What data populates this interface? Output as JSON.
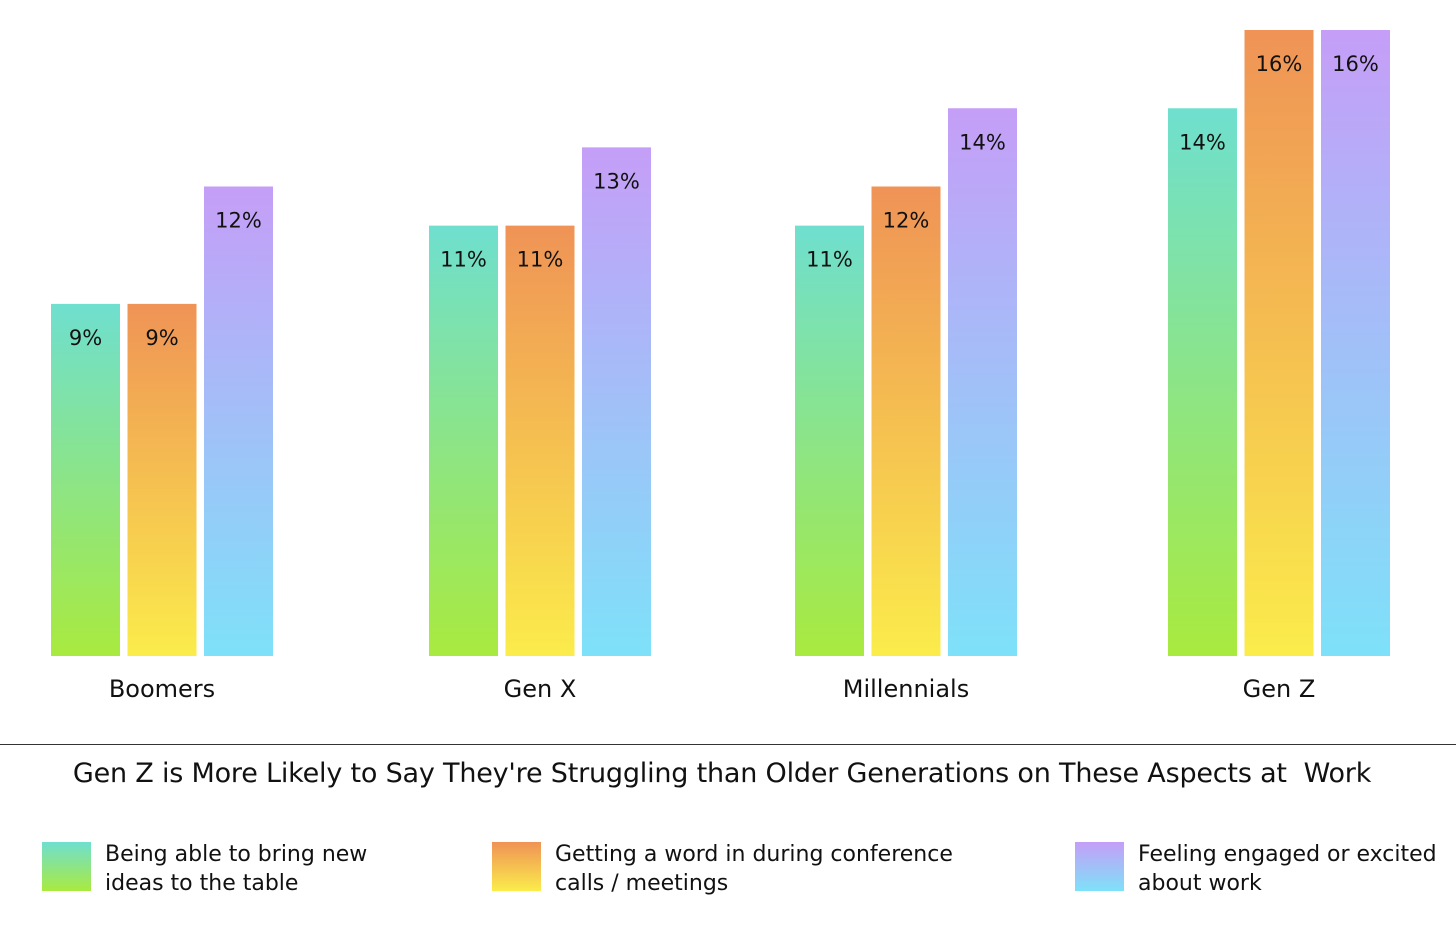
{
  "chart_data": {
    "type": "bar",
    "title": "Gen Z is More Likely to Say They're Struggling than Older Generations on These Aspects at  Work",
    "categories": [
      "Boomers",
      "Gen X",
      "Millennials",
      "Gen Z"
    ],
    "series": [
      {
        "name": "Being able to bring new ideas to the table",
        "values": [
          9,
          11,
          11,
          14
        ],
        "data_labels": [
          "9%",
          "11%",
          "11%",
          "14%"
        ],
        "gradient": [
          "#6fdfcf",
          "#a9ea3f"
        ]
      },
      {
        "name": "Getting a word in during conference calls / meetings",
        "values": [
          9,
          11,
          12,
          16
        ],
        "data_labels": [
          "9%",
          "11%",
          "12%",
          "16%"
        ],
        "gradient": [
          "#ef9356",
          "#fbec4b"
        ]
      },
      {
        "name": "Feeling engaged or excited about work",
        "values": [
          12,
          13,
          14,
          16
        ],
        "data_labels": [
          "12%",
          "13%",
          "14%",
          "16%"
        ],
        "gradient": [
          "#c59ef7",
          "#7ee1f9"
        ]
      }
    ],
    "ylim": [
      0,
      16
    ],
    "grid": false,
    "legend_position": "bottom",
    "legend_lines": [
      [
        "Being able to bring new",
        "ideas to the table"
      ],
      [
        "Getting a word in during conference",
        "calls / meetings"
      ],
      [
        "Feeling engaged or excited",
        "about work"
      ]
    ]
  }
}
